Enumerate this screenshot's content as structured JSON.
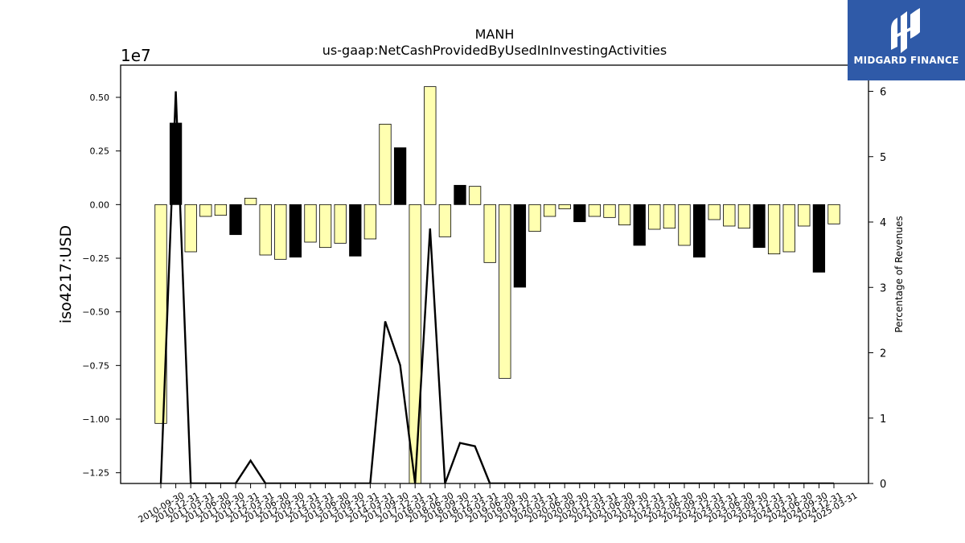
{
  "chart_data": {
    "type": "bar",
    "title": "MANH",
    "subtitle": "us-gaap:NetCashProvidedByUsedInInvestingActivities",
    "ylabel": "iso4217:USD",
    "y2label": "Percentage of Revenues",
    "y_offset_label": "1e7",
    "ylim": [
      -1.3,
      0.65
    ],
    "y_scale": 10000000,
    "y2lim": [
      0,
      6.4
    ],
    "y_ticks": [
      "0.50",
      "0.25",
      "0.00",
      "−0.25",
      "−0.50",
      "−0.75",
      "−1.00",
      "−1.25"
    ],
    "y2_ticks": [
      "0",
      "1",
      "2",
      "3",
      "4",
      "5",
      "6"
    ],
    "grid": false,
    "colors": {
      "positive_quarter": "#ffffb0",
      "q4_bar": "#000000",
      "line": "#000000"
    },
    "categories": [
      "2010-09-30",
      "2010-12-31",
      "2011-03-31",
      "2011-06-30",
      "2011-09-30",
      "2011-12-31",
      "2012-03-31",
      "2012-06-30",
      "2012-09-30",
      "2012-12-31",
      "2013-03-31",
      "2013-06-30",
      "2013-09-30",
      "2013-12-31",
      "2014-03-31",
      "2017-09-30",
      "2017-12-31",
      "2018-03-31",
      "2018-06-30",
      "2018-09-30",
      "2018-12-31",
      "2019-03-31",
      "2019-06-30",
      "2019-09-30",
      "2019-12-31",
      "2020-03-31",
      "2020-06-30",
      "2020-09-30",
      "2020-12-31",
      "2021-03-31",
      "2021-06-30",
      "2021-09-30",
      "2021-12-31",
      "2022-03-31",
      "2022-06-30",
      "2022-09-30",
      "2022-12-31",
      "2023-03-31",
      "2023-06-30",
      "2023-09-30",
      "2023-12-31",
      "2024-03-31",
      "2024-06-30",
      "2024-09-30",
      "2024-12-31",
      "2025-03-31"
    ],
    "series": [
      {
        "values": [
          -1.02,
          0.38,
          -0.22,
          -0.055,
          -0.05,
          -0.14,
          0.03,
          -0.235,
          -0.255,
          -0.245,
          -0.175,
          -0.2,
          -0.18,
          -0.24,
          -0.16,
          0.375,
          0.265,
          -1.3,
          0.55,
          -0.15,
          0.09,
          0.085,
          -0.27,
          -0.81,
          -0.385,
          -0.125,
          -0.055,
          -0.02,
          -0.08,
          -0.055,
          -0.06,
          -0.095,
          -0.19,
          -0.115,
          -0.11,
          -0.19,
          -0.245,
          -0.07,
          -0.1,
          -0.11,
          -0.2,
          -0.23,
          -0.22,
          -0.1,
          -0.315,
          -0.09
        ],
        "q4_flags": [
          0,
          1,
          0,
          0,
          0,
          1,
          0,
          0,
          0,
          1,
          0,
          0,
          0,
          1,
          0,
          0,
          1,
          0,
          0,
          0,
          1,
          0,
          0,
          0,
          1,
          0,
          0,
          0,
          1,
          0,
          0,
          0,
          1,
          0,
          0,
          0,
          1,
          0,
          0,
          0,
          1,
          0,
          0,
          0,
          1,
          0
        ]
      },
      {
        "values": [
          0,
          6.0,
          0,
          0,
          0,
          0,
          0.35,
          0,
          0,
          0,
          0,
          0,
          0,
          0,
          0,
          2.48,
          1.81,
          0,
          3.9,
          0,
          0.62,
          0.57,
          0,
          0,
          0,
          0,
          0,
          0,
          0,
          0,
          0,
          0,
          0,
          0,
          0,
          0,
          0,
          0,
          0,
          0,
          0,
          0,
          0,
          0,
          0,
          0
        ]
      }
    ]
  },
  "brand": {
    "name": "MIDGARD FINANCE",
    "icon": "midgard-logo-icon",
    "color": "#2f5aa8"
  }
}
